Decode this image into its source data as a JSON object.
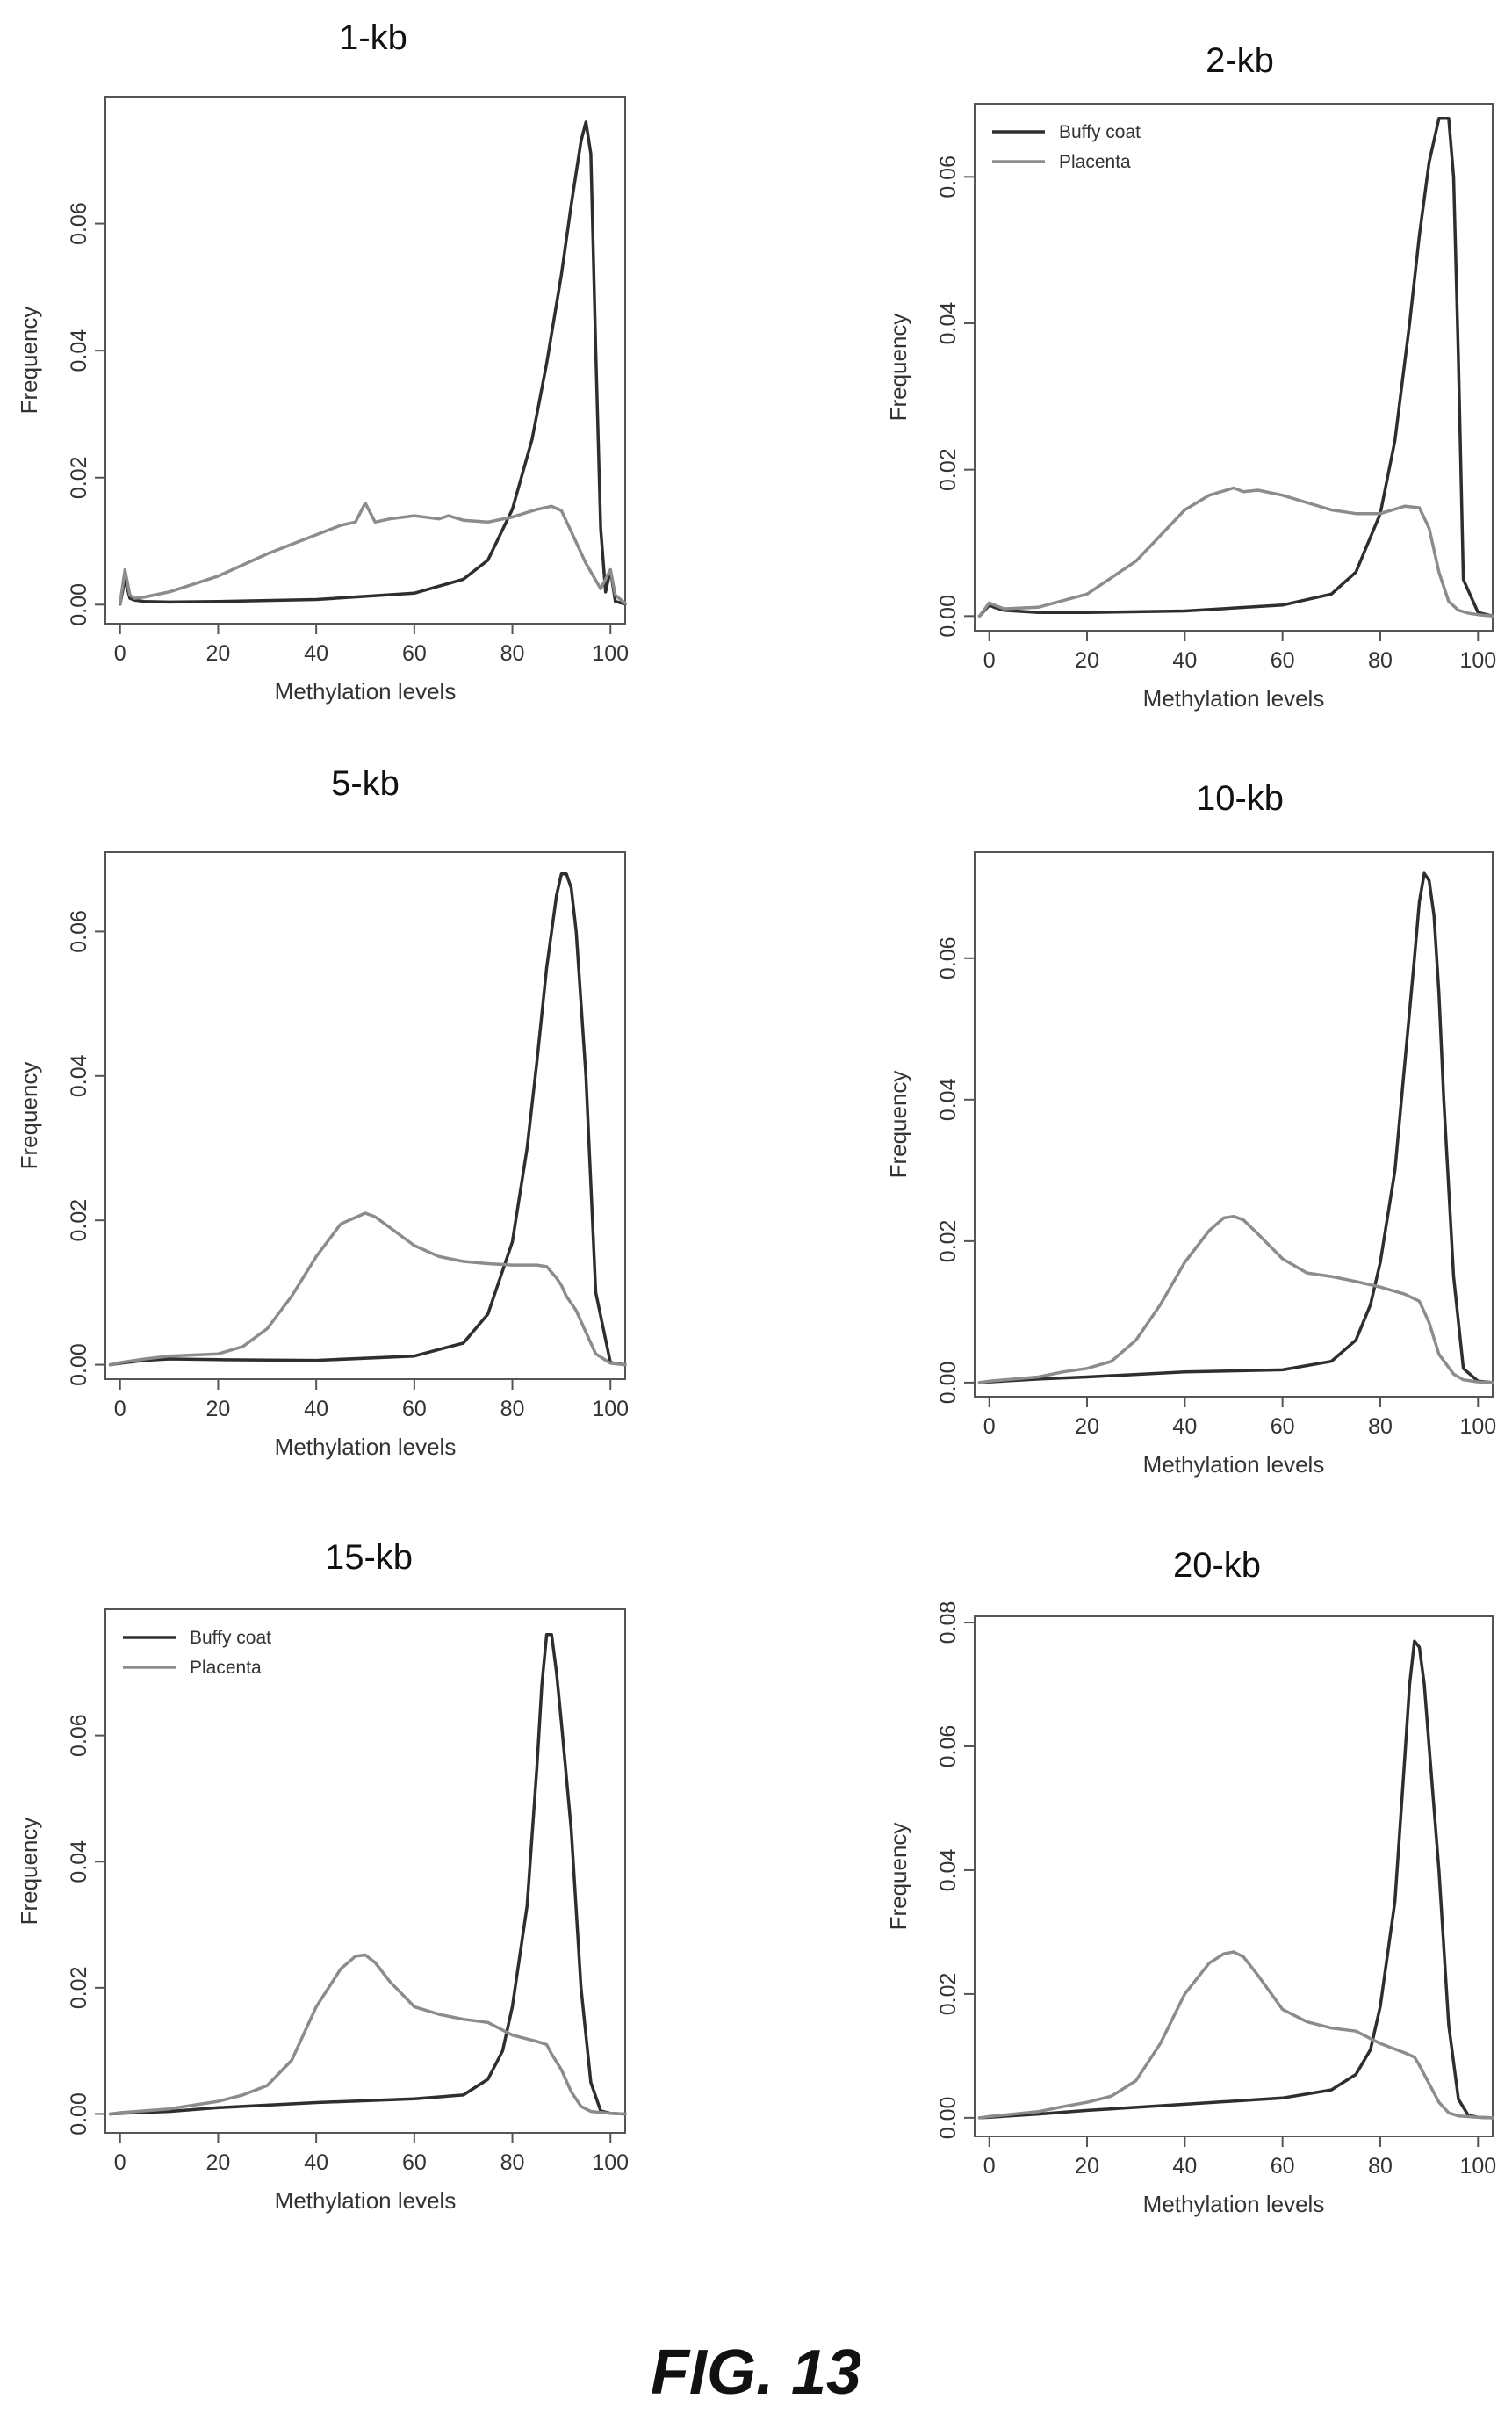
{
  "figure_caption": "FIG. 13",
  "colors": {
    "buffy_coat": "#2e2e2e",
    "placenta": "#8c8c8c",
    "frame": "#555555"
  },
  "chart_data": [
    {
      "type": "line",
      "title": "1-kb",
      "xlabel": "Methylation levels",
      "ylabel": "Frequency",
      "xlim": [
        -3,
        103
      ],
      "ylim": [
        -0.003,
        0.08
      ],
      "xticks": [
        "0",
        "20",
        "40",
        "60",
        "80",
        "100"
      ],
      "yticks": [
        "0.00",
        "0.02",
        "0.04",
        "0.06"
      ],
      "legend": null,
      "series": [
        {
          "name": "Buffy coat",
          "x": [
            0,
            1,
            2,
            3,
            5,
            10,
            20,
            40,
            60,
            70,
            75,
            80,
            84,
            87,
            90,
            92,
            94,
            95,
            96,
            97,
            98,
            99,
            100,
            101,
            103
          ],
          "y": [
            0.0001,
            0.004,
            0.001,
            0.0007,
            0.0005,
            0.0004,
            0.0005,
            0.0008,
            0.0018,
            0.004,
            0.007,
            0.015,
            0.026,
            0.038,
            0.052,
            0.063,
            0.073,
            0.076,
            0.071,
            0.04,
            0.012,
            0.002,
            0.0055,
            0.0005,
            0.0001
          ]
        },
        {
          "name": "Placenta",
          "x": [
            0,
            1,
            2,
            3,
            5,
            10,
            20,
            30,
            35,
            40,
            45,
            48,
            50,
            52,
            55,
            60,
            65,
            67,
            70,
            75,
            80,
            85,
            88,
            90,
            92,
            95,
            98,
            100,
            101,
            103
          ],
          "y": [
            0.0002,
            0.0055,
            0.0015,
            0.001,
            0.0012,
            0.002,
            0.0045,
            0.008,
            0.0095,
            0.011,
            0.0125,
            0.013,
            0.016,
            0.013,
            0.0135,
            0.014,
            0.0135,
            0.014,
            0.0133,
            0.013,
            0.0138,
            0.015,
            0.0155,
            0.0148,
            0.0115,
            0.0065,
            0.0025,
            0.0055,
            0.0015,
            0.0002
          ]
        }
      ]
    },
    {
      "type": "line",
      "title": "2-kb",
      "xlabel": "Methylation levels",
      "ylabel": "Frequency",
      "xlim": [
        -3,
        103
      ],
      "ylim": [
        -0.002,
        0.07
      ],
      "xticks": [
        "0",
        "20",
        "40",
        "60",
        "80",
        "100"
      ],
      "yticks": [
        "0.00",
        "0.02",
        "0.04",
        "0.06"
      ],
      "legend": "top-left",
      "series": [
        {
          "name": "Buffy coat",
          "x": [
            -2,
            0,
            1,
            3,
            10,
            20,
            40,
            60,
            70,
            75,
            80,
            83,
            86,
            88,
            90,
            92,
            94,
            95,
            96,
            97,
            100,
            103
          ],
          "y": [
            0,
            0.0015,
            0.0012,
            0.0008,
            0.0005,
            0.0005,
            0.0007,
            0.0015,
            0.003,
            0.006,
            0.014,
            0.024,
            0.04,
            0.052,
            0.062,
            0.068,
            0.068,
            0.06,
            0.035,
            0.005,
            0.0005,
            0
          ]
        },
        {
          "name": "Placenta",
          "x": [
            -2,
            0,
            1,
            3,
            10,
            20,
            30,
            35,
            40,
            45,
            50,
            52,
            55,
            60,
            65,
            70,
            75,
            80,
            85,
            88,
            90,
            92,
            94,
            96,
            98,
            100,
            103
          ],
          "y": [
            0,
            0.0018,
            0.0015,
            0.001,
            0.0012,
            0.003,
            0.0075,
            0.011,
            0.0145,
            0.0165,
            0.0175,
            0.017,
            0.0172,
            0.0165,
            0.0155,
            0.0145,
            0.014,
            0.014,
            0.015,
            0.0148,
            0.012,
            0.006,
            0.002,
            0.0008,
            0.0004,
            0.0002,
            0
          ]
        }
      ]
    },
    {
      "type": "line",
      "title": "5-kb",
      "xlabel": "Methylation levels",
      "ylabel": "Frequency",
      "xlim": [
        -3,
        103
      ],
      "ylim": [
        -0.002,
        0.071
      ],
      "xticks": [
        "0",
        "20",
        "40",
        "60",
        "80",
        "100"
      ],
      "yticks": [
        "0.00",
        "0.02",
        "0.04",
        "0.06"
      ],
      "legend": null,
      "series": [
        {
          "name": "Buffy coat",
          "x": [
            -2,
            0,
            5,
            10,
            20,
            40,
            60,
            70,
            75,
            80,
            83,
            85,
            87,
            89,
            90,
            91,
            92,
            93,
            95,
            97,
            100,
            103
          ],
          "y": [
            0,
            0.0002,
            0.0006,
            0.0008,
            0.0007,
            0.0006,
            0.0012,
            0.003,
            0.007,
            0.017,
            0.03,
            0.042,
            0.055,
            0.065,
            0.068,
            0.068,
            0.066,
            0.06,
            0.04,
            0.01,
            0.0003,
            0
          ]
        },
        {
          "name": "Placenta",
          "x": [
            -2,
            0,
            5,
            10,
            20,
            25,
            30,
            35,
            40,
            45,
            50,
            52,
            55,
            60,
            65,
            70,
            75,
            80,
            85,
            87,
            88,
            89,
            90,
            91,
            92,
            93,
            95,
            97,
            100,
            103
          ],
          "y": [
            0,
            0.0003,
            0.0008,
            0.0012,
            0.0015,
            0.0025,
            0.005,
            0.0095,
            0.015,
            0.0195,
            0.021,
            0.0205,
            0.019,
            0.0165,
            0.015,
            0.0143,
            0.014,
            0.0138,
            0.0138,
            0.0136,
            0.0128,
            0.012,
            0.011,
            0.0095,
            0.0085,
            0.0075,
            0.0045,
            0.0015,
            0.0002,
            0
          ]
        }
      ]
    },
    {
      "type": "line",
      "title": "10-kb",
      "xlabel": "Methylation levels",
      "ylabel": "Frequency",
      "xlim": [
        -3,
        103
      ],
      "ylim": [
        -0.002,
        0.075
      ],
      "xticks": [
        "0",
        "20",
        "40",
        "60",
        "80",
        "100"
      ],
      "yticks": [
        "0.00",
        "0.02",
        "0.04",
        "0.06"
      ],
      "legend": null,
      "series": [
        {
          "name": "Buffy coat",
          "x": [
            -2,
            0,
            10,
            20,
            40,
            60,
            70,
            75,
            78,
            80,
            83,
            85,
            87,
            88,
            89,
            90,
            91,
            92,
            93,
            95,
            97,
            100,
            103
          ],
          "y": [
            0,
            0.0001,
            0.0005,
            0.0008,
            0.0015,
            0.0018,
            0.003,
            0.006,
            0.011,
            0.017,
            0.03,
            0.045,
            0.06,
            0.068,
            0.072,
            0.071,
            0.066,
            0.055,
            0.04,
            0.015,
            0.002,
            0.0002,
            0
          ]
        },
        {
          "name": "Placenta",
          "x": [
            -2,
            0,
            10,
            15,
            20,
            25,
            30,
            35,
            40,
            45,
            48,
            50,
            52,
            55,
            60,
            65,
            70,
            75,
            80,
            85,
            88,
            90,
            92,
            95,
            97,
            100,
            103
          ],
          "y": [
            0,
            0.0002,
            0.0008,
            0.0015,
            0.002,
            0.003,
            0.006,
            0.011,
            0.017,
            0.0215,
            0.0233,
            0.0235,
            0.023,
            0.021,
            0.0175,
            0.0155,
            0.015,
            0.0143,
            0.0135,
            0.0125,
            0.0115,
            0.0085,
            0.004,
            0.0012,
            0.0004,
            0.0001,
            0
          ]
        }
      ]
    },
    {
      "type": "line",
      "title": "15-kb",
      "xlabel": "Methylation levels",
      "ylabel": "Frequency",
      "xlim": [
        -3,
        103
      ],
      "ylim": [
        -0.003,
        0.08
      ],
      "xticks": [
        "0",
        "20",
        "40",
        "60",
        "80",
        "100"
      ],
      "yticks": [
        "0.00",
        "0.02",
        "0.04",
        "0.06"
      ],
      "legend": "top-left",
      "series": [
        {
          "name": "Buffy coat",
          "x": [
            -2,
            0,
            10,
            20,
            40,
            60,
            70,
            75,
            78,
            80,
            83,
            85,
            86,
            87,
            88,
            89,
            90,
            92,
            94,
            96,
            98,
            100,
            103
          ],
          "y": [
            0,
            0.0001,
            0.0004,
            0.001,
            0.0018,
            0.0024,
            0.003,
            0.0055,
            0.01,
            0.017,
            0.033,
            0.055,
            0.068,
            0.076,
            0.076,
            0.07,
            0.062,
            0.045,
            0.02,
            0.005,
            0.0005,
            0.0001,
            0
          ]
        },
        {
          "name": "Placenta",
          "x": [
            -2,
            0,
            10,
            15,
            20,
            25,
            30,
            35,
            40,
            45,
            48,
            50,
            52,
            55,
            60,
            65,
            70,
            75,
            80,
            85,
            87,
            88,
            90,
            92,
            94,
            96,
            100,
            103
          ],
          "y": [
            0,
            0.0002,
            0.0008,
            0.0014,
            0.002,
            0.003,
            0.0045,
            0.0085,
            0.017,
            0.023,
            0.025,
            0.0252,
            0.024,
            0.021,
            0.017,
            0.0158,
            0.015,
            0.0145,
            0.0125,
            0.0115,
            0.011,
            0.0095,
            0.007,
            0.0035,
            0.0012,
            0.0004,
            0.0001,
            0
          ]
        }
      ]
    },
    {
      "type": "line",
      "title": "20-kb",
      "xlabel": "Methylation levels",
      "ylabel": "Frequency",
      "xlim": [
        -3,
        103
      ],
      "ylim": [
        -0.003,
        0.081
      ],
      "xticks": [
        "0",
        "20",
        "40",
        "60",
        "80",
        "100"
      ],
      "yticks": [
        "0.00",
        "0.02",
        "0.04",
        "0.06",
        "0.08"
      ],
      "legend": null,
      "series": [
        {
          "name": "Buffy coat",
          "x": [
            -2,
            0,
            10,
            20,
            40,
            60,
            70,
            75,
            78,
            80,
            83,
            85,
            86,
            87,
            88,
            89,
            90,
            92,
            94,
            96,
            98,
            100,
            103
          ],
          "y": [
            0,
            0.0001,
            0.0006,
            0.0012,
            0.0022,
            0.0032,
            0.0045,
            0.007,
            0.011,
            0.018,
            0.035,
            0.058,
            0.07,
            0.077,
            0.076,
            0.07,
            0.06,
            0.04,
            0.015,
            0.003,
            0.0004,
            0.0001,
            0
          ]
        },
        {
          "name": "Placenta",
          "x": [
            -2,
            0,
            10,
            15,
            20,
            25,
            30,
            35,
            40,
            45,
            48,
            50,
            52,
            55,
            60,
            65,
            70,
            75,
            80,
            85,
            87,
            88,
            90,
            92,
            94,
            96,
            100,
            103
          ],
          "y": [
            0,
            0.0002,
            0.001,
            0.0018,
            0.0025,
            0.0035,
            0.006,
            0.012,
            0.02,
            0.025,
            0.0265,
            0.0268,
            0.026,
            0.023,
            0.0175,
            0.0155,
            0.0145,
            0.014,
            0.012,
            0.0105,
            0.0098,
            0.0085,
            0.0055,
            0.0025,
            0.0008,
            0.0003,
            0.0001,
            0
          ]
        }
      ]
    }
  ]
}
